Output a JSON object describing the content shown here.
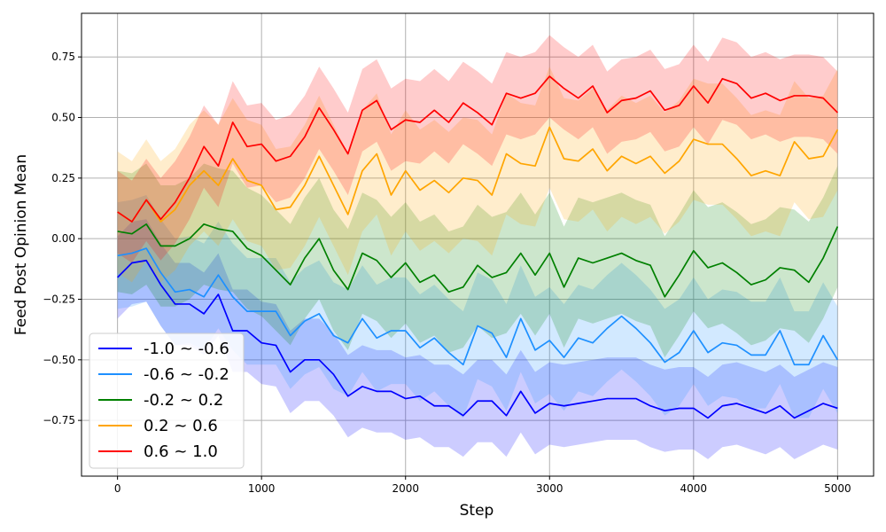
{
  "chart_data": {
    "type": "line",
    "xlabel": "Step",
    "ylabel": "Feed Post Opinion Mean",
    "xlim": [
      -250,
      5250
    ],
    "ylim": [
      -0.98,
      0.93
    ],
    "xticks": [
      0,
      1000,
      2000,
      3000,
      4000,
      5000
    ],
    "yticks": [
      -0.75,
      -0.5,
      -0.25,
      0.0,
      0.25,
      0.5,
      0.75
    ],
    "ytick_labels": [
      "−0.75",
      "−0.50",
      "−0.25",
      "0.00",
      "0.25",
      "0.50",
      "0.75"
    ],
    "grid": true,
    "legend_position": "lower-left",
    "x": [
      0,
      100,
      200,
      300,
      400,
      500,
      600,
      700,
      800,
      900,
      1000,
      1100,
      1200,
      1300,
      1400,
      1500,
      1600,
      1700,
      1800,
      1900,
      2000,
      2100,
      2200,
      2300,
      2400,
      2500,
      2600,
      2700,
      2800,
      2900,
      3000,
      3100,
      3200,
      3300,
      3400,
      3500,
      3600,
      3700,
      3800,
      3900,
      4000,
      4100,
      4200,
      4300,
      4400,
      4500,
      4600,
      4700,
      4800,
      4900,
      5000
    ],
    "series": [
      {
        "name": "-1.0 ~ -0.6",
        "color": "#0000ff",
        "band_color": "rgba(0,0,255,0.2)",
        "mean": [
          -0.16,
          -0.1,
          -0.09,
          -0.19,
          -0.27,
          -0.27,
          -0.31,
          -0.23,
          -0.38,
          -0.38,
          -0.43,
          -0.44,
          -0.55,
          -0.5,
          -0.5,
          -0.56,
          -0.65,
          -0.61,
          -0.63,
          -0.63,
          -0.66,
          -0.65,
          -0.69,
          -0.69,
          -0.73,
          -0.67,
          -0.67,
          -0.73,
          -0.63,
          -0.72,
          -0.68,
          -0.69,
          -0.68,
          -0.67,
          -0.66,
          -0.66,
          -0.66,
          -0.69,
          -0.71,
          -0.7,
          -0.7,
          -0.74,
          -0.69,
          -0.68,
          -0.7,
          -0.72,
          -0.69,
          -0.74,
          -0.71,
          -0.68,
          -0.7
        ],
        "band": 0.17
      },
      {
        "name": "-0.6 ~ -0.2",
        "color": "#1e90ff",
        "band_color": "rgba(30,144,255,0.2)",
        "mean": [
          -0.07,
          -0.06,
          -0.04,
          -0.14,
          -0.22,
          -0.21,
          -0.24,
          -0.15,
          -0.24,
          -0.3,
          -0.3,
          -0.3,
          -0.4,
          -0.34,
          -0.31,
          -0.4,
          -0.43,
          -0.33,
          -0.41,
          -0.38,
          -0.38,
          -0.45,
          -0.41,
          -0.47,
          -0.52,
          -0.36,
          -0.39,
          -0.49,
          -0.33,
          -0.46,
          -0.42,
          -0.49,
          -0.41,
          -0.43,
          -0.37,
          -0.32,
          -0.37,
          -0.43,
          -0.51,
          -0.47,
          -0.38,
          -0.47,
          -0.43,
          -0.44,
          -0.48,
          -0.48,
          -0.38,
          -0.52,
          -0.52,
          -0.4,
          -0.5
        ],
        "band": 0.22
      },
      {
        "name": "-0.2 ~ 0.2",
        "color": "#008000",
        "band_color": "rgba(0,128,0,0.2)",
        "mean": [
          0.03,
          0.02,
          0.06,
          -0.03,
          -0.03,
          0.0,
          0.06,
          0.04,
          0.03,
          -0.04,
          -0.07,
          -0.13,
          -0.19,
          -0.08,
          0.0,
          -0.13,
          -0.21,
          -0.06,
          -0.09,
          -0.16,
          -0.1,
          -0.18,
          -0.15,
          -0.22,
          -0.2,
          -0.11,
          -0.16,
          -0.14,
          -0.06,
          -0.15,
          -0.06,
          -0.2,
          -0.08,
          -0.1,
          -0.08,
          -0.06,
          -0.09,
          -0.11,
          -0.24,
          -0.15,
          -0.05,
          -0.12,
          -0.1,
          -0.14,
          -0.19,
          -0.17,
          -0.12,
          -0.13,
          -0.18,
          -0.08,
          0.05
        ],
        "band": 0.25
      },
      {
        "name": "0.2 ~ 0.6",
        "color": "#ffa500",
        "band_color": "rgba(255,165,0,0.2)",
        "mean": [
          0.11,
          0.07,
          0.16,
          0.07,
          0.12,
          0.22,
          0.28,
          0.22,
          0.33,
          0.24,
          0.22,
          0.12,
          0.13,
          0.22,
          0.34,
          0.22,
          0.1,
          0.28,
          0.35,
          0.18,
          0.28,
          0.2,
          0.24,
          0.19,
          0.25,
          0.24,
          0.18,
          0.35,
          0.31,
          0.3,
          0.46,
          0.33,
          0.32,
          0.37,
          0.28,
          0.34,
          0.31,
          0.34,
          0.27,
          0.32,
          0.41,
          0.39,
          0.39,
          0.33,
          0.26,
          0.28,
          0.26,
          0.4,
          0.33,
          0.34,
          0.45
        ],
        "band": 0.25
      },
      {
        "name": "0.6 ~ 1.0",
        "color": "#ff0000",
        "band_color": "rgba(255,0,0,0.2)",
        "mean": [
          0.11,
          0.07,
          0.16,
          0.08,
          0.15,
          0.25,
          0.38,
          0.3,
          0.48,
          0.38,
          0.39,
          0.32,
          0.34,
          0.42,
          0.54,
          0.45,
          0.35,
          0.53,
          0.57,
          0.45,
          0.49,
          0.48,
          0.53,
          0.48,
          0.56,
          0.52,
          0.47,
          0.6,
          0.58,
          0.6,
          0.67,
          0.62,
          0.58,
          0.63,
          0.52,
          0.57,
          0.58,
          0.61,
          0.53,
          0.55,
          0.63,
          0.56,
          0.66,
          0.64,
          0.58,
          0.6,
          0.57,
          0.59,
          0.59,
          0.58,
          0.52
        ],
        "band": 0.17
      }
    ]
  }
}
